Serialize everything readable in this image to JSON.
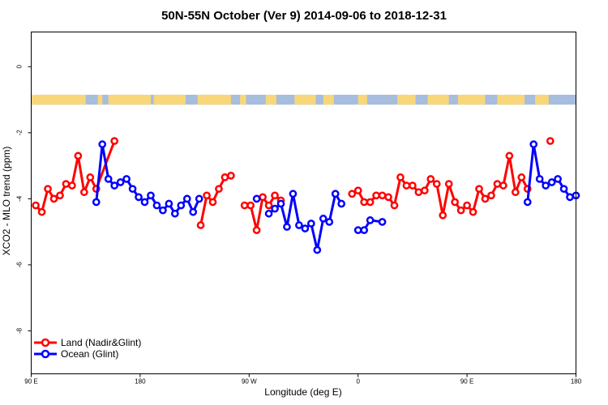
{
  "chart_data": {
    "type": "line",
    "title": "50N-55N October (Ver 9)   2014-09-06 to 2018-12-31",
    "xlabel": "Longitude (deg E)",
    "ylabel": "XCO2 - MLO trend (ppm)",
    "xlim": [
      90,
      450
    ],
    "ylim": [
      -9.3,
      1.05
    ],
    "x_ticks": [
      {
        "value": 90,
        "label": "90 E"
      },
      {
        "value": 162,
        "label": "180"
      },
      {
        "value": 234,
        "label": "90 W"
      },
      {
        "value": 306,
        "label": "0"
      },
      {
        "value": 378,
        "label": "90 E"
      },
      {
        "value": 450,
        "label": "180"
      }
    ],
    "y_ticks": [
      {
        "value": 0,
        "label": "0"
      },
      {
        "value": -2,
        "label": "-2"
      },
      {
        "value": -4,
        "label": "-4"
      },
      {
        "value": -6,
        "label": "-6"
      },
      {
        "value": -8,
        "label": "-8"
      }
    ],
    "legend_position": "bottom-left",
    "land_ocean_strip": {
      "y_top": -0.85,
      "y_bottom": -1.15,
      "land_color": "#f8d77a",
      "ocean_color": "#a7bddd"
    },
    "series": [
      {
        "name": "Land (Nadir&Glint)",
        "color": "#ff0000",
        "segments": [
          [
            [
              93,
              -4.2
            ],
            [
              97,
              -4.4
            ],
            [
              101,
              -3.7
            ],
            [
              105,
              -4.0
            ],
            [
              109,
              -3.9
            ],
            [
              113,
              -3.55
            ],
            [
              117,
              -3.6
            ],
            [
              121,
              -2.7
            ],
            [
              125,
              -3.8
            ],
            [
              129,
              -3.35
            ],
            [
              133,
              -3.7
            ],
            [
              145,
              -2.25
            ]
          ],
          [
            [
              202,
              -4.8
            ],
            [
              206,
              -3.9
            ],
            [
              210,
              -4.1
            ],
            [
              214,
              -3.7
            ],
            [
              218,
              -3.35
            ],
            [
              222,
              -3.3
            ]
          ],
          [
            [
              231,
              -4.2
            ],
            [
              235,
              -4.2
            ],
            [
              239,
              -4.95
            ],
            [
              243,
              -3.95
            ],
            [
              247,
              -4.2
            ],
            [
              251,
              -3.9
            ],
            [
              255,
              -4.05
            ]
          ],
          [
            [
              302,
              -3.85
            ],
            [
              306,
              -3.75
            ],
            [
              310,
              -4.1
            ],
            [
              314,
              -4.1
            ],
            [
              318,
              -3.9
            ],
            [
              322,
              -3.9
            ],
            [
              326,
              -3.95
            ],
            [
              330,
              -4.2
            ],
            [
              334,
              -3.35
            ],
            [
              338,
              -3.6
            ],
            [
              342,
              -3.6
            ],
            [
              346,
              -3.8
            ],
            [
              350,
              -3.75
            ],
            [
              354,
              -3.4
            ],
            [
              358,
              -3.55
            ],
            [
              362,
              -4.5
            ],
            [
              366,
              -3.55
            ],
            [
              370,
              -4.1
            ],
            [
              374,
              -4.35
            ],
            [
              378,
              -4.2
            ],
            [
              382,
              -4.4
            ],
            [
              386,
              -3.7
            ],
            [
              390,
              -4.0
            ],
            [
              394,
              -3.9
            ],
            [
              398,
              -3.55
            ],
            [
              402,
              -3.6
            ],
            [
              406,
              -2.7
            ],
            [
              410,
              -3.8
            ],
            [
              414,
              -3.35
            ],
            [
              418,
              -3.7
            ]
          ],
          [
            [
              433,
              -2.25
            ]
          ]
        ]
      },
      {
        "name": "Ocean (Glint)",
        "color": "#0000ff",
        "segments": [
          [
            [
              133,
              -4.1
            ],
            [
              137,
              -2.35
            ],
            [
              141,
              -3.4
            ],
            [
              145,
              -3.6
            ],
            [
              149,
              -3.5
            ],
            [
              153,
              -3.4
            ],
            [
              157,
              -3.7
            ],
            [
              161,
              -3.95
            ],
            [
              165,
              -4.1
            ],
            [
              169,
              -3.9
            ],
            [
              173,
              -4.2
            ],
            [
              177,
              -4.35
            ],
            [
              181,
              -4.15
            ],
            [
              185,
              -4.45
            ],
            [
              189,
              -4.2
            ],
            [
              193,
              -4.0
            ],
            [
              197,
              -4.4
            ],
            [
              201,
              -4.0
            ]
          ],
          [
            [
              239,
              -4.0
            ]
          ],
          [
            [
              247,
              -4.45
            ],
            [
              251,
              -4.3
            ],
            [
              255,
              -4.15
            ],
            [
              259,
              -4.85
            ],
            [
              263,
              -3.85
            ],
            [
              267,
              -4.8
            ],
            [
              271,
              -4.9
            ],
            [
              275,
              -4.75
            ],
            [
              279,
              -5.55
            ],
            [
              283,
              -4.6
            ],
            [
              287,
              -4.7
            ],
            [
              291,
              -3.85
            ],
            [
              295,
              -4.15
            ]
          ],
          [
            [
              306,
              -4.95
            ],
            [
              310,
              -4.95
            ],
            [
              314,
              -4.65
            ],
            [
              322,
              -4.7
            ]
          ],
          [
            [
              418,
              -4.1
            ],
            [
              422,
              -2.35
            ],
            [
              426,
              -3.4
            ],
            [
              430,
              -3.6
            ],
            [
              434,
              -3.5
            ],
            [
              438,
              -3.4
            ],
            [
              442,
              -3.7
            ],
            [
              446,
              -3.95
            ],
            [
              450,
              -3.9
            ]
          ]
        ]
      }
    ]
  }
}
